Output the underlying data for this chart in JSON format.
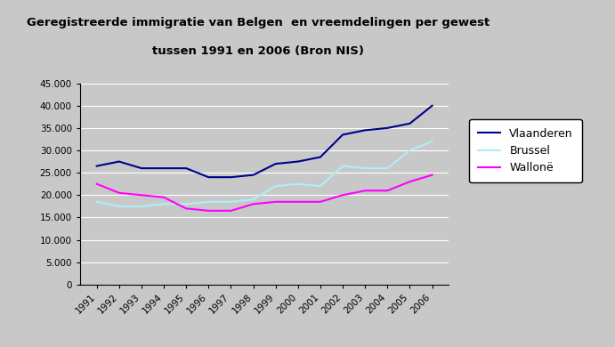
{
  "title_line1": "Geregistreerde immigratie van Belgen  en vreemdelingen per gewest",
  "title_line2": "tussen 1991 en 2006 (Bron NIS)",
  "years": [
    1991,
    1992,
    1993,
    1994,
    1995,
    1996,
    1997,
    1998,
    1999,
    2000,
    2001,
    2002,
    2003,
    2004,
    2005,
    2006
  ],
  "vlaanderen": [
    26500,
    27500,
    26000,
    26000,
    26000,
    24000,
    24000,
    24500,
    27000,
    27500,
    28500,
    33500,
    34500,
    35000,
    36000,
    40000
  ],
  "brussel": [
    18500,
    17500,
    17500,
    18000,
    18000,
    18500,
    18500,
    19000,
    22000,
    22500,
    22000,
    26500,
    26000,
    26000,
    30000,
    32000
  ],
  "wallonie": [
    22500,
    20500,
    20000,
    19500,
    17000,
    16500,
    16500,
    18000,
    18500,
    18500,
    18500,
    20000,
    21000,
    21000,
    23000,
    24500
  ],
  "vlaanderen_color": "#00008B",
  "brussel_color": "#AEEEF8",
  "wallonie_color": "#FF00FF",
  "plot_bg_color": "#C8C8C8",
  "outer_bg_color": "#C8C8C8",
  "ylim": [
    0,
    45000
  ],
  "ytick_step": 5000,
  "legend_labels": [
    "Vlaanderen",
    "Brussel",
    "Wallonë"
  ]
}
